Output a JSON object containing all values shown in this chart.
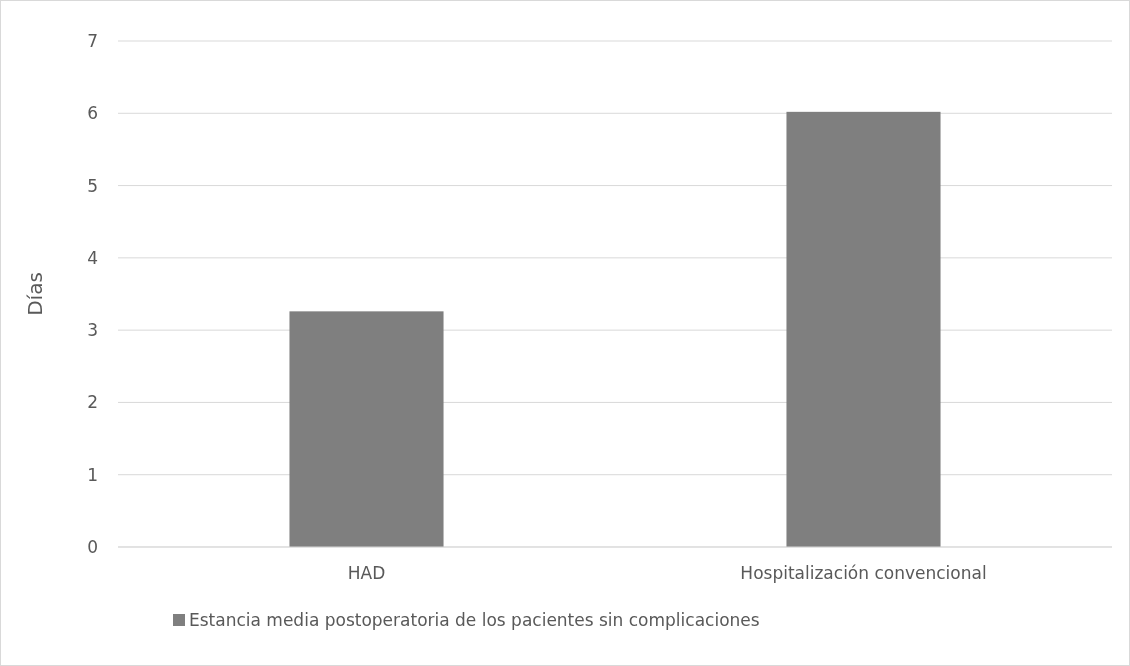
{
  "chart_data": {
    "type": "bar",
    "ylabel": "Días",
    "categories": [
      "HAD",
      "Hospitalización convencional"
    ],
    "series": [
      {
        "name": "Estancia media postoperatoria de los pacientes sin complicaciones",
        "color": "#7f7f7f",
        "values": [
          3.26,
          6.02
        ]
      }
    ],
    "ylim": [
      0,
      7
    ],
    "yticks": [
      0,
      1,
      2,
      3,
      4,
      5,
      6,
      7
    ],
    "grid": "y",
    "legend": "bottom"
  }
}
